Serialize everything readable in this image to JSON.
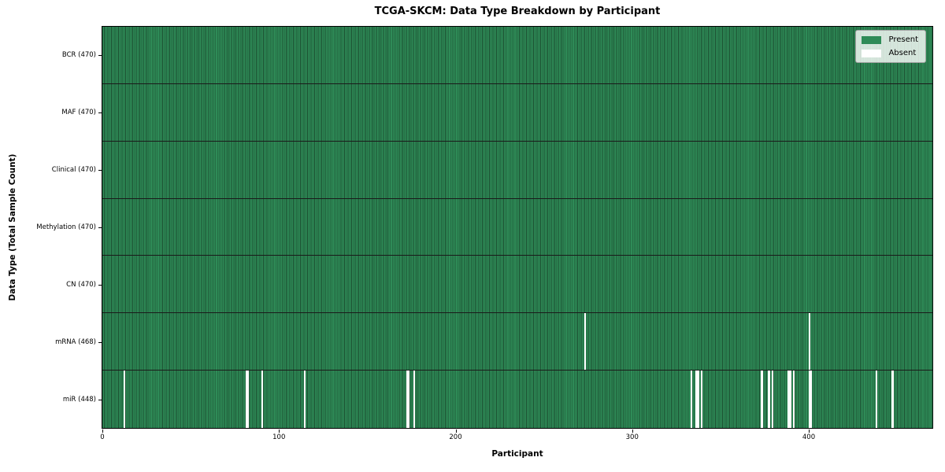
{
  "title": "TCGA-SKCM: Data Type Breakdown by Participant",
  "x_axis_label": "Participant",
  "y_axis_label": "Data Type (Total Sample Count)",
  "legend": {
    "present_label": "Present",
    "absent_label": "Absent"
  },
  "chart_data": {
    "type": "heatmap",
    "title": "TCGA-SKCM: Data Type Breakdown by Participant",
    "xlabel": "Participant",
    "ylabel": "Data Type (Total Sample Count)",
    "x_range": [
      0,
      470
    ],
    "x_ticks": [
      0,
      100,
      200,
      300,
      400
    ],
    "n_participants": 470,
    "legend_position": "upper right",
    "grid": false,
    "rows": [
      {
        "data_type": "BCR",
        "label": "BCR (470)",
        "count": 470,
        "absent": []
      },
      {
        "data_type": "MAF",
        "label": "MAF (470)",
        "count": 470,
        "absent": []
      },
      {
        "data_type": "Clinical",
        "label": "Clinical (470)",
        "count": 470,
        "absent": []
      },
      {
        "data_type": "Methylation",
        "label": "Methylation (470)",
        "count": 470,
        "absent": []
      },
      {
        "data_type": "CN",
        "label": "CN (470)",
        "count": 470,
        "absent": []
      },
      {
        "data_type": "mRNA",
        "label": "mRNA (468)",
        "count": 468,
        "absent": [
          273,
          400
        ]
      },
      {
        "data_type": "miR",
        "label": "miR (448)",
        "count": 448,
        "absent": [
          12,
          81,
          82,
          90,
          114,
          172,
          173,
          176,
          333,
          336,
          337,
          339,
          373,
          377,
          379,
          388,
          389,
          391,
          400,
          401,
          438,
          447
        ]
      }
    ],
    "colors": {
      "present": "#2e8b57",
      "bar_edge": "#1c4f31",
      "absent": "#ffffff",
      "row_separator": "#1a1a1a",
      "spine": "#000000",
      "legend_background": "#e4e8e2",
      "legend_border": "#a3a3a3"
    }
  }
}
